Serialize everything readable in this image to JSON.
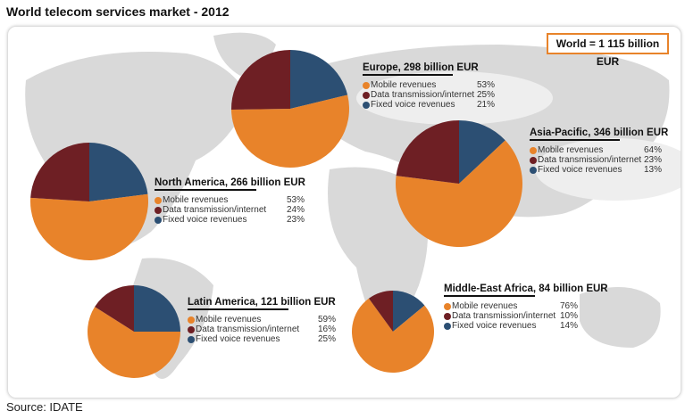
{
  "title": "World telecom services market - 2012",
  "source": "Source: IDATE",
  "world_total": "World = 1 115 billion EUR",
  "colors": {
    "mobile": "#e8832a",
    "data": "#6e1f24",
    "fixed": "#2c4f73",
    "accent": "#e8832a"
  },
  "chart_data": {
    "type": "pie",
    "legend_labels": [
      "Mobile revenues",
      "Data transmission/internet",
      "Fixed voice revenues"
    ],
    "regions": [
      {
        "id": "europe",
        "title": "Europe, 298 billion EUR",
        "values": [
          53,
          25,
          21
        ],
        "labels": [
          "53%",
          "25%",
          "21%"
        ]
      },
      {
        "id": "north-america",
        "title": "North America, 266 billion EUR",
        "values": [
          53,
          24,
          23
        ],
        "labels": [
          "53%",
          "24%",
          "23%"
        ]
      },
      {
        "id": "asia-pacific",
        "title": "Asia-Pacific, 346 billion EUR",
        "values": [
          64,
          23,
          13
        ],
        "labels": [
          "64%",
          "23%",
          "13%"
        ]
      },
      {
        "id": "latin-america",
        "title": "Latin America, 121 billion EUR",
        "values": [
          59,
          16,
          25
        ],
        "labels": [
          "59%",
          "16%",
          "25%"
        ]
      },
      {
        "id": "middle-east-africa",
        "title": "Middle-East Africa, 84 billion EUR",
        "values": [
          76,
          10,
          14
        ],
        "labels": [
          "76%",
          "10%",
          "14%"
        ]
      }
    ]
  }
}
